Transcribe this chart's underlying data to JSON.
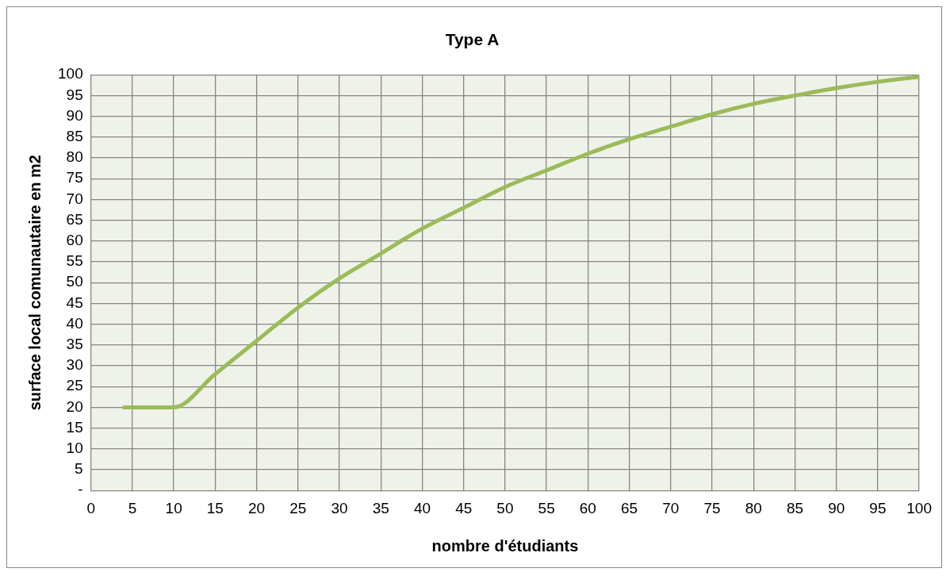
{
  "chart_data": {
    "type": "line",
    "title": "Type A",
    "xlabel": "nombre d'étudiants",
    "ylabel": "surface local comunautaire en m2",
    "x": [
      4,
      10,
      15,
      20,
      25,
      30,
      35,
      40,
      45,
      50,
      55,
      60,
      65,
      70,
      75,
      80,
      85,
      90,
      95,
      100
    ],
    "series": [
      {
        "color": "#9bbb59",
        "values": [
          20,
          20,
          28,
          36,
          44,
          51,
          57,
          63,
          68,
          73,
          77,
          81,
          84.5,
          87.5,
          90.5,
          93,
          95,
          96.8,
          98.3,
          99.5
        ]
      }
    ],
    "xlim": [
      0,
      100
    ],
    "xticks": [
      0,
      5,
      10,
      15,
      20,
      25,
      30,
      35,
      40,
      45,
      50,
      55,
      60,
      65,
      70,
      75,
      80,
      85,
      90,
      95,
      100
    ],
    "ylim": [
      0,
      100
    ],
    "yticks": [
      {
        "value": 0,
        "label": "-"
      },
      5,
      10,
      15,
      20,
      25,
      30,
      35,
      40,
      45,
      50,
      55,
      60,
      65,
      70,
      75,
      80,
      85,
      90,
      95,
      100
    ],
    "grid": true,
    "legend": false,
    "marker": "none",
    "line_style": "solid"
  }
}
